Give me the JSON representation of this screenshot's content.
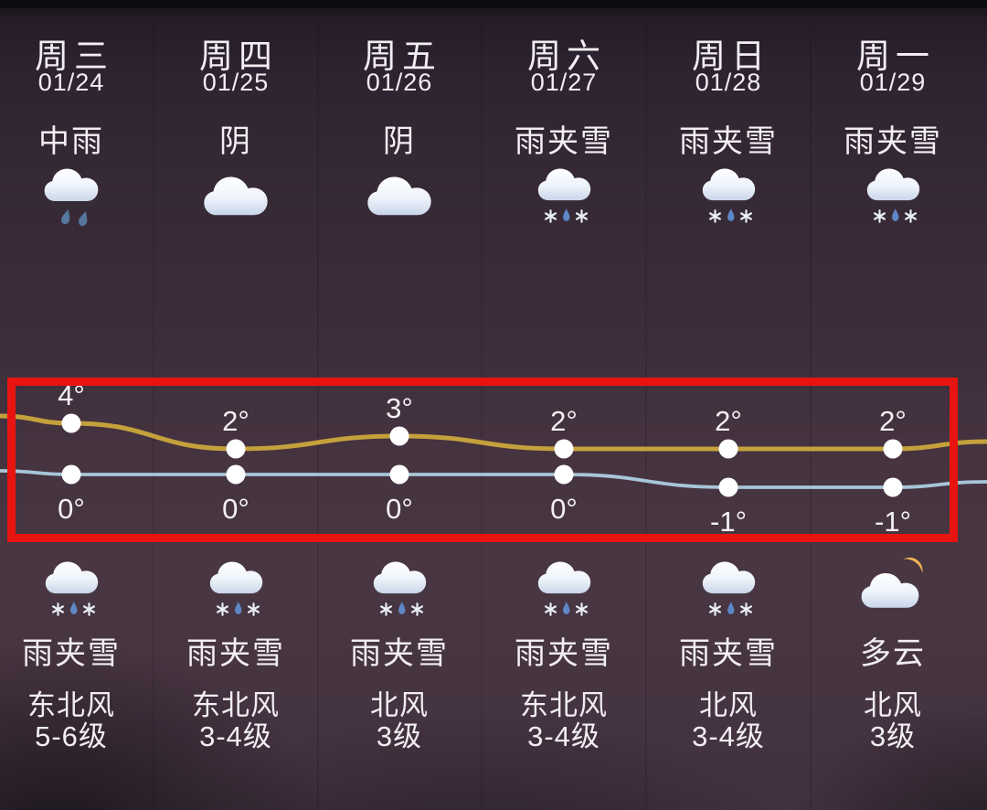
{
  "columns": [
    {
      "day": "周三",
      "date": "01/24",
      "day_condition": "中雨",
      "day_icon": "rain",
      "night_icon": "sleet",
      "night_condition": "雨夹雪",
      "wind_direction": "东北风",
      "wind_level": "5-6级"
    },
    {
      "day": "周四",
      "date": "01/25",
      "day_condition": "阴",
      "day_icon": "cloudy",
      "night_icon": "sleet",
      "night_condition": "雨夹雪",
      "wind_direction": "东北风",
      "wind_level": "3-4级"
    },
    {
      "day": "周五",
      "date": "01/26",
      "day_condition": "阴",
      "day_icon": "cloudy",
      "night_icon": "sleet",
      "night_condition": "雨夹雪",
      "wind_direction": "北风",
      "wind_level": "3级"
    },
    {
      "day": "周六",
      "date": "01/27",
      "day_condition": "雨夹雪",
      "day_icon": "sleet",
      "night_icon": "sleet",
      "night_condition": "雨夹雪",
      "wind_direction": "东北风",
      "wind_level": "3-4级"
    },
    {
      "day": "周日",
      "date": "01/28",
      "day_condition": "雨夹雪",
      "day_icon": "sleet",
      "night_icon": "sleet",
      "night_condition": "雨夹雪",
      "wind_direction": "北风",
      "wind_level": "3-4级"
    },
    {
      "day": "周一",
      "date": "01/29",
      "day_condition": "雨夹雪",
      "day_icon": "sleet",
      "night_icon": "cloudy-night",
      "night_condition": "多云",
      "wind_direction": "北风",
      "wind_level": "3级"
    }
  ],
  "chart_data": {
    "type": "line",
    "categories": [
      "周三 01/24",
      "周四 01/25",
      "周五 01/26",
      "周六 01/27",
      "周日 01/28",
      "周一 01/29"
    ],
    "series": [
      {
        "name": "high",
        "values": [
          4,
          2,
          3,
          2,
          2,
          2
        ],
        "labels": [
          "4°",
          "2°",
          "3°",
          "2°",
          "2°",
          "2°"
        ],
        "color": "#c4a13c"
      },
      {
        "name": "low",
        "values": [
          0,
          0,
          0,
          0,
          -1,
          -1
        ],
        "labels": [
          "0°",
          "0°",
          "0°",
          "0°",
          "-1°",
          "-1°"
        ],
        "color": "#a7c6d8"
      }
    ],
    "point_color": "#ffffff",
    "label_color": "#f4f0f4",
    "ylim": [
      -2,
      5
    ],
    "grid": false,
    "legend": false
  },
  "annotation": {
    "highlight_color": "#e81410"
  }
}
